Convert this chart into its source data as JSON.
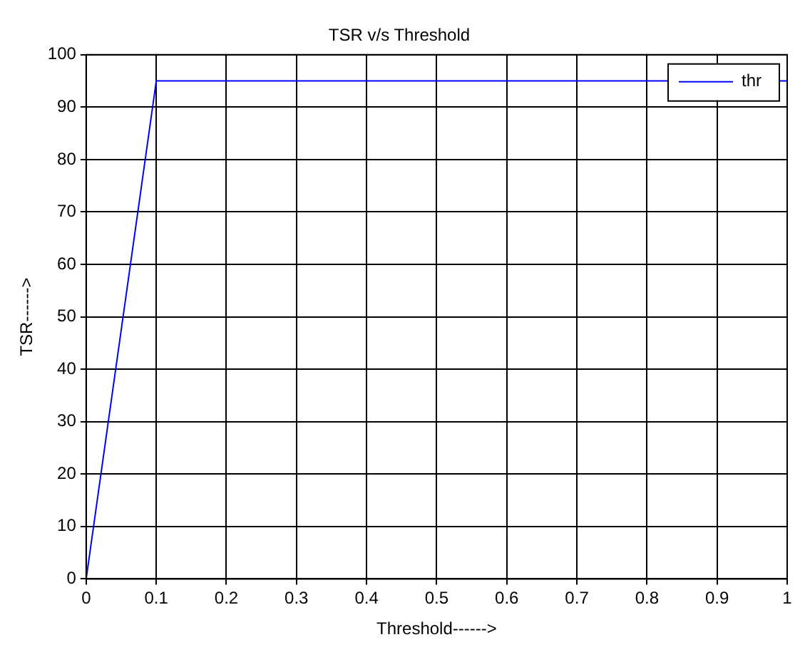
{
  "chart_data": {
    "type": "line",
    "title": "TSR v/s Threshold",
    "xlabel": "Threshold------>",
    "ylabel": "TSR------>",
    "x": [
      0,
      0.1,
      1
    ],
    "series": [
      {
        "name": "thr",
        "color": "#0000ff",
        "values": [
          0,
          95,
          95
        ]
      }
    ],
    "xlim": [
      0,
      1
    ],
    "xticks": [
      0,
      0.1,
      0.2,
      0.3,
      0.4,
      0.5,
      0.6,
      0.7,
      0.8,
      0.9,
      1
    ],
    "ylim": [
      0,
      100
    ],
    "yticks": [
      0,
      10,
      20,
      30,
      40,
      50,
      60,
      70,
      80,
      90,
      100
    ],
    "grid": true,
    "legend": "top right",
    "marker": "none",
    "line_style": "solid"
  }
}
